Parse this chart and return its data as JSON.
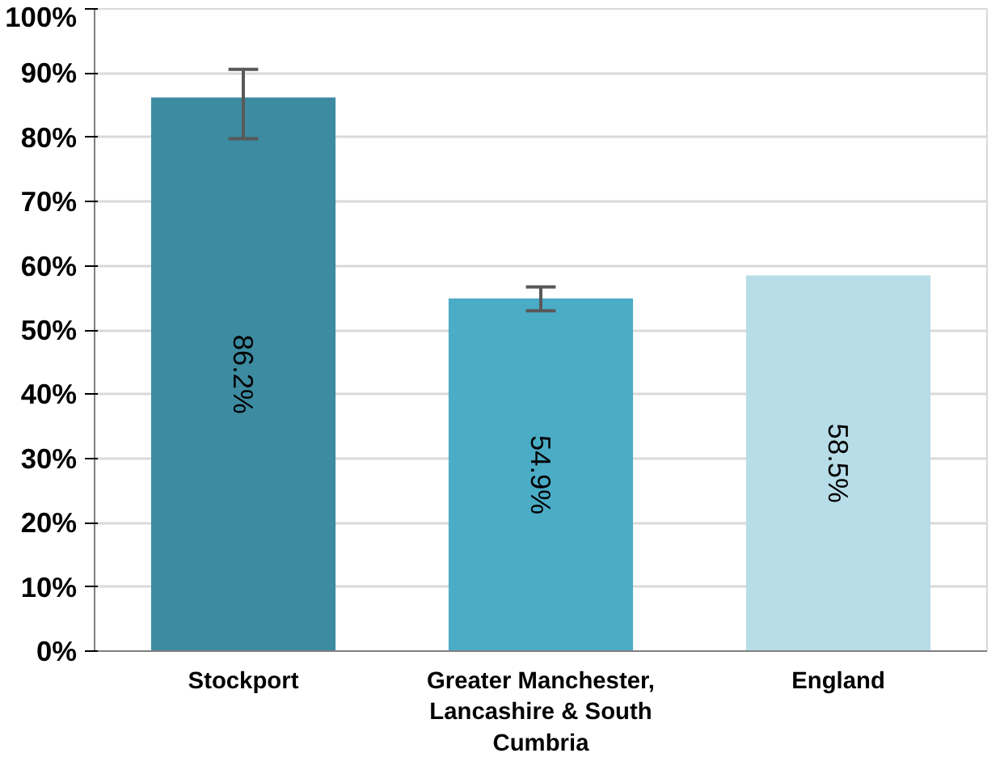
{
  "chart_data": {
    "type": "bar",
    "categories": [
      "Stockport",
      "Greater Manchester, Lancashire & South Cumbria",
      "England"
    ],
    "values": [
      86.2,
      54.9,
      58.5
    ],
    "colors": [
      "#3d8ba1",
      "#4bacc6",
      "#b7dde8"
    ],
    "errors": [
      [
        79.8,
        90.6
      ],
      [
        53.0,
        56.7
      ],
      null
    ],
    "value_labels": [
      "86.2%",
      "54.9%",
      "58.5%"
    ],
    "ylim": [
      0,
      100
    ],
    "yticks": [
      {
        "value": 0,
        "label": "0%"
      },
      {
        "value": 10,
        "label": "10%"
      },
      {
        "value": 20,
        "label": "20%"
      },
      {
        "value": 30,
        "label": "30%"
      },
      {
        "value": 40,
        "label": "40%"
      },
      {
        "value": 50,
        "label": "50%"
      },
      {
        "value": 60,
        "label": "60%"
      },
      {
        "value": 70,
        "label": "70%"
      },
      {
        "value": 80,
        "label": "80%"
      },
      {
        "value": 90,
        "label": "90%"
      },
      {
        "value": 100,
        "label": "100%"
      }
    ],
    "grid": "y"
  }
}
